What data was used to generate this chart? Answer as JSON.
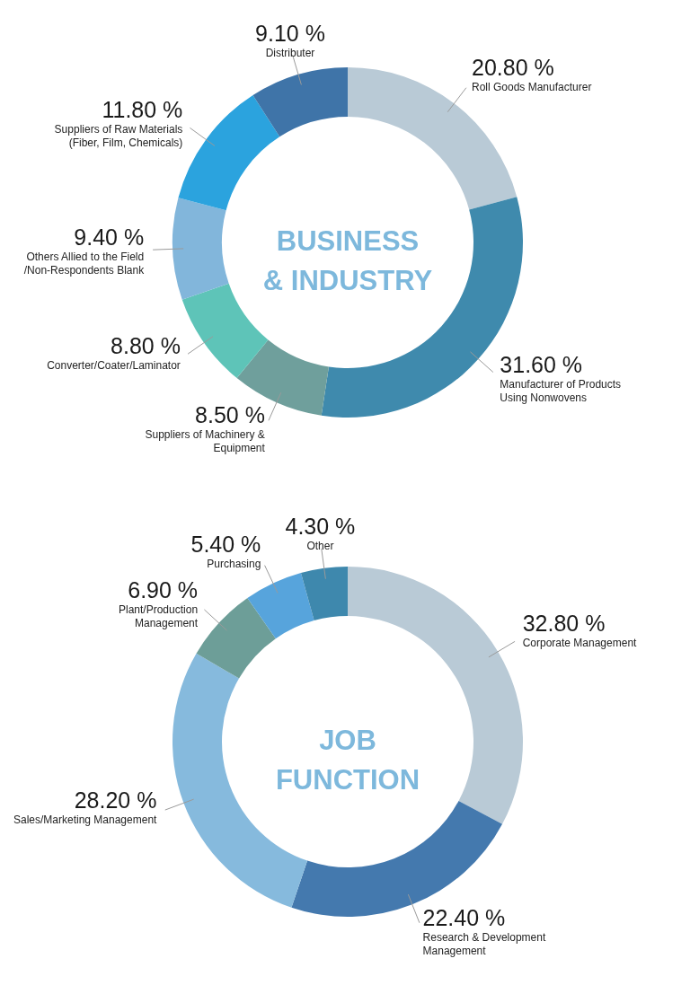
{
  "chart_data": [
    {
      "type": "donut",
      "title": "BUSINESS & INDUSTRY",
      "categories": [
        "Roll Goods Manufacturer",
        "Manufacturer of Products Using Nonwovens",
        "Suppliers of Machinery & Equipment",
        "Converter/Coater/Laminator",
        "Others Allied to the Field /Non-Respondents Blank",
        "Suppliers of Raw Materials (Fiber, Film, Chemicals)",
        "Distributer"
      ],
      "values": [
        20.8,
        31.6,
        8.5,
        8.8,
        9.4,
        11.8,
        9.1
      ],
      "value_labels": [
        "20.80 %",
        "31.60 %",
        "8.50 %",
        "8.80 %",
        "9.40 %",
        "11.80 %",
        "9.10 %"
      ],
      "colors": [
        "#b9cad6",
        "#3f8aad",
        "#6f9f9c",
        "#5ec4b8",
        "#82b6db",
        "#2ba3de",
        "#3f74a8"
      ],
      "legend": false
    },
    {
      "type": "donut",
      "title": "JOB FUNCTION",
      "categories": [
        "Corporate Management",
        "Research & Development Management",
        "Sales/Marketing Management",
        "Plant/Production Management",
        "Purchasing",
        "Other"
      ],
      "values": [
        32.8,
        22.4,
        28.2,
        6.9,
        5.4,
        4.3
      ],
      "value_labels": [
        "32.80 %",
        "22.40 %",
        "28.20 %",
        "6.90 %",
        "5.40 %",
        "4.30 %"
      ],
      "colors": [
        "#b9cad6",
        "#4479ae",
        "#86badd",
        "#6d9e98",
        "#57a4dc",
        "#3e88ad"
      ],
      "legend": false
    }
  ]
}
